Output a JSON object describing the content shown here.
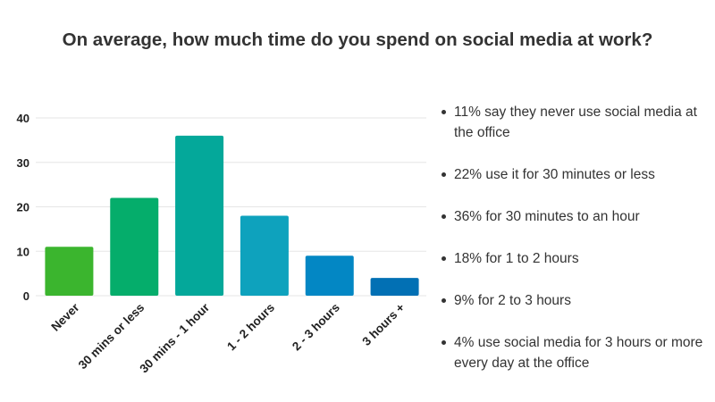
{
  "chart_data": {
    "type": "bar",
    "title": "On average, how much time do you spend on social media at work?",
    "xlabel": "",
    "ylabel": "",
    "categories": [
      "Never",
      "30 mins or less",
      "30 mins - 1 hour",
      "1 - 2 hours",
      "2 - 3 hours",
      "3 hours +"
    ],
    "values": [
      11,
      22,
      36,
      18,
      9,
      4
    ],
    "ylim": [
      0,
      40
    ],
    "yticks": [
      "0",
      "10",
      "20",
      "30",
      "40"
    ],
    "colors": [
      "#3bb52e",
      "#05ad6b",
      "#04a89a",
      "#0ea2bd",
      "#0387c4",
      "#0270b4"
    ],
    "grid": true,
    "legend": "none"
  },
  "notes": [
    "11% say they never use social media at the office",
    "22% use it for 30 minutes or less",
    "36% for 30 minutes to an hour",
    "18% for 1 to 2 hours",
    "9% for 2 to 3 hours",
    "4%  use social media for 3 hours or more every day at the office"
  ]
}
